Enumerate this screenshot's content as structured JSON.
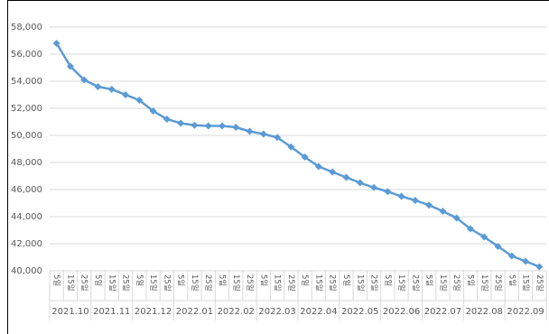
{
  "chart_data": {
    "type": "line",
    "categories": [
      "5일",
      "15일",
      "25일",
      "5일",
      "15일",
      "25일",
      "5일",
      "15일",
      "25일",
      "5일",
      "15일",
      "25일",
      "5일",
      "15일",
      "25일",
      "5일",
      "15일",
      "25일",
      "5일",
      "15일",
      "25일",
      "5일",
      "15일",
      "25일",
      "5일",
      "15일",
      "25일",
      "5일",
      "15일",
      "25일",
      "5일",
      "15일",
      "25일",
      "5일",
      "15일",
      "25일"
    ],
    "groups": [
      "2021.10",
      "2021.11",
      "2021.12",
      "2022.01",
      "2022.02",
      "2022.03",
      "2022.04",
      "2022.05",
      "2022.06",
      "2022.07",
      "2022.08",
      "2022.09"
    ],
    "series": [
      {
        "color": "#5b9bd5",
        "values": [
          56800,
          55100,
          54100,
          53600,
          53400,
          53000,
          52600,
          51800,
          51200,
          50900,
          50750,
          50700,
          50700,
          50600,
          50300,
          50100,
          49850,
          49150,
          48400,
          47700,
          47300,
          46900,
          46500,
          46150,
          45850,
          45500,
          45200,
          44850,
          44400,
          43900,
          43100,
          42500,
          41800,
          41100,
          40700,
          40300
        ]
      }
    ],
    "ylim": [
      40000,
      58000
    ],
    "yticks": [
      {
        "value": 40000,
        "label": "40,000"
      },
      {
        "value": 42000,
        "label": "42,000"
      },
      {
        "value": 44000,
        "label": "44,000"
      },
      {
        "value": 46000,
        "label": "46,000"
      },
      {
        "value": 48000,
        "label": "48,000"
      },
      {
        "value": 50000,
        "label": "50,000"
      },
      {
        "value": 52000,
        "label": "52,000"
      },
      {
        "value": 54000,
        "label": "54,000"
      },
      {
        "value": 56000,
        "label": "56,000"
      },
      {
        "value": 58000,
        "label": "58,000"
      }
    ],
    "grid": true
  }
}
